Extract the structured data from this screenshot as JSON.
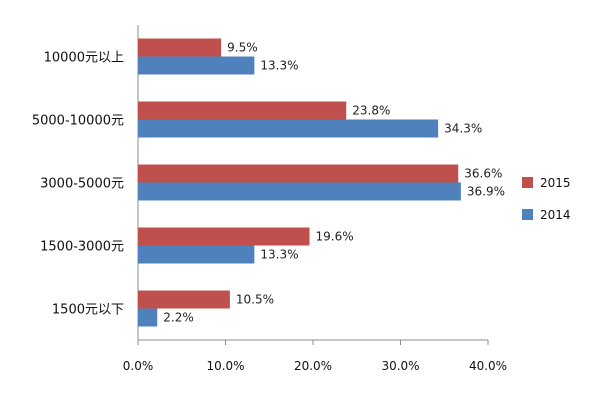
{
  "chart_data": {
    "type": "bar",
    "orientation": "horizontal",
    "categories": [
      "10000元以上",
      "5000-10000元",
      "3000-5000元",
      "1500-3000元",
      "1500元以下"
    ],
    "series": [
      {
        "name": "2015",
        "color": "#C0504D",
        "values": [
          9.5,
          23.8,
          36.6,
          19.6,
          10.5
        ],
        "labels": [
          "9.5%",
          "23.8%",
          "36.6%",
          "19.6%",
          "10.5%"
        ]
      },
      {
        "name": "2014",
        "color": "#4F81BD",
        "values": [
          13.3,
          34.3,
          36.9,
          13.3,
          2.2
        ],
        "labels": [
          "13.3%",
          "34.3%",
          "36.9%",
          "13.3%",
          "2.2%"
        ]
      }
    ],
    "xlim": [
      0,
      40
    ],
    "xticks": [
      "0.0%",
      "10.0%",
      "20.0%",
      "30.0%",
      "40.0%"
    ],
    "grid": false,
    "legend_position": "right"
  }
}
